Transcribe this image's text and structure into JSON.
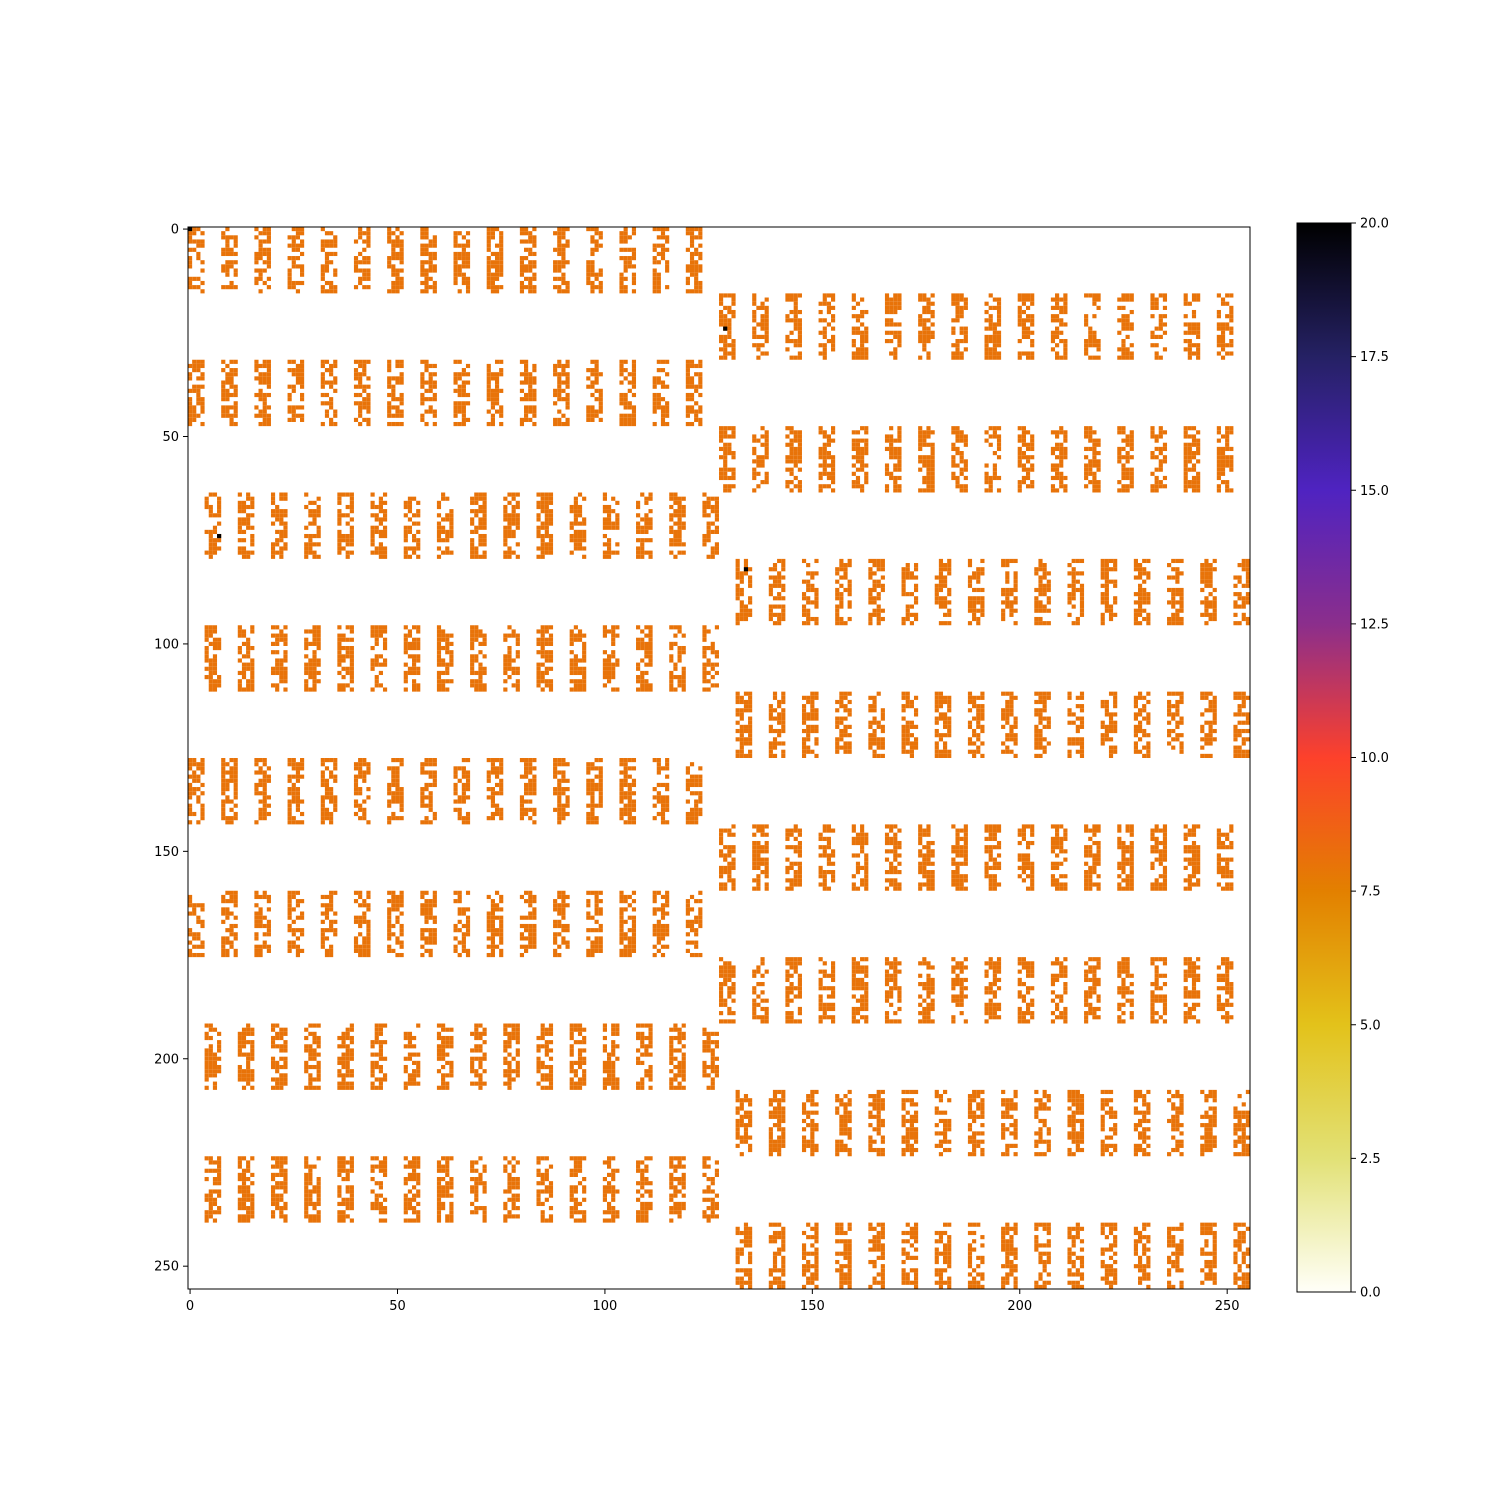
{
  "chart_data": {
    "type": "heatmap",
    "title": "",
    "xlabel": "",
    "ylabel": "",
    "matrix_size": [
      256,
      256
    ],
    "xlim": [
      0,
      255
    ],
    "ylim": [
      255,
      0
    ],
    "x_ticks": [
      0,
      50,
      100,
      150,
      200,
      250
    ],
    "x_tick_labels": [
      "0",
      "50",
      "100",
      "150",
      "200",
      "250"
    ],
    "y_ticks": [
      0,
      50,
      100,
      150,
      200,
      250
    ],
    "y_tick_labels": [
      "0",
      "50",
      "100",
      "150",
      "200",
      "250"
    ],
    "grid": false,
    "colorbar": {
      "min": 0,
      "max": 20,
      "ticks": [
        0,
        2.5,
        5,
        7.5,
        10,
        12.5,
        15,
        17.5,
        20
      ],
      "tick_labels": [
        "0.0",
        "2.5",
        "5.0",
        "7.5",
        "10.0",
        "12.5",
        "15.0",
        "17.5",
        "20.0"
      ],
      "colormap_stops": [
        {
          "value": 0,
          "color": "#fffff8"
        },
        {
          "value": 2.5,
          "color": "#e2e176"
        },
        {
          "value": 5,
          "color": "#e3c21a"
        },
        {
          "value": 7.5,
          "color": "#e38000"
        },
        {
          "value": 10,
          "color": "#fd412b"
        },
        {
          "value": 12.5,
          "color": "#8b2e8c"
        },
        {
          "value": 15,
          "color": "#4f23c1"
        },
        {
          "value": 17.5,
          "color": "#252164"
        },
        {
          "value": 20,
          "color": "#000000"
        }
      ],
      "placement": "right"
    },
    "structure": {
      "description_values": "banded block pattern of rows of 16x16 sparse blocks",
      "row_block_height": 16,
      "row_bands": [
        {
          "row_start": 0,
          "col_start": 0,
          "col_end": 127
        },
        {
          "row_start": 16,
          "col_start": 128,
          "col_end": 255
        },
        {
          "row_start": 32,
          "col_start": 0,
          "col_end": 127
        },
        {
          "row_start": 48,
          "col_start": 128,
          "col_end": 255
        },
        {
          "row_start": 64,
          "col_start": 4,
          "col_end": 131
        },
        {
          "row_start": 80,
          "col_start": 132,
          "col_end": 255
        },
        {
          "row_start": 96,
          "col_start": 4,
          "col_end": 131
        },
        {
          "row_start": 112,
          "col_start": 132,
          "col_end": 255
        },
        {
          "row_start": 128,
          "col_start": 0,
          "col_end": 127
        },
        {
          "row_start": 144,
          "col_start": 128,
          "col_end": 255
        },
        {
          "row_start": 160,
          "col_start": 0,
          "col_end": 127
        },
        {
          "row_start": 176,
          "col_start": 128,
          "col_end": 255
        },
        {
          "row_start": 192,
          "col_start": 4,
          "col_end": 131
        },
        {
          "row_start": 208,
          "col_start": 132,
          "col_end": 255
        },
        {
          "row_start": 224,
          "col_start": 4,
          "col_end": 131
        },
        {
          "row_start": 240,
          "col_start": 132,
          "col_end": 255
        }
      ],
      "block_col_period": 8,
      "block_width": 4,
      "dominant_value": 8,
      "outlier_value": 20,
      "outliers": [
        {
          "row": 0,
          "col": 0
        },
        {
          "row": 24,
          "col": 129
        },
        {
          "row": 74,
          "col": 7
        },
        {
          "row": 82,
          "col": 134
        }
      ],
      "fill_density": 0.6,
      "random_seed": 7
    }
  }
}
